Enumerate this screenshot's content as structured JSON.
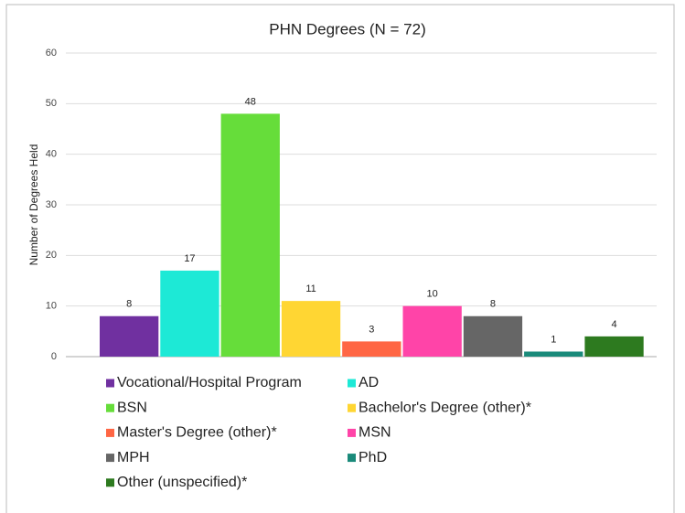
{
  "chart_data": {
    "type": "bar",
    "title": "PHN Degrees (N = 72)",
    "y_label": "Number of Degrees Held",
    "categories": [
      "Vocational/Hospital Program",
      "AD",
      "BSN",
      "Bachelor's Degree (other)*",
      "Master's Degree (other)*",
      "MSN",
      "MPH",
      "PhD",
      "Other (unspecified)*"
    ],
    "values": [
      8,
      17,
      48,
      11,
      3,
      10,
      8,
      1,
      4
    ],
    "colors": [
      "#7030a0",
      "#1de9d6",
      "#66dd3a",
      "#ffd633",
      "#ff6644",
      "#ff44a8",
      "#666666",
      "#1a8a7a",
      "#2d7a1f"
    ],
    "ylim": [
      0,
      60
    ],
    "yticks": [
      0,
      10,
      20,
      30,
      40,
      50,
      60
    ],
    "grid": true,
    "legend": "bottom"
  }
}
